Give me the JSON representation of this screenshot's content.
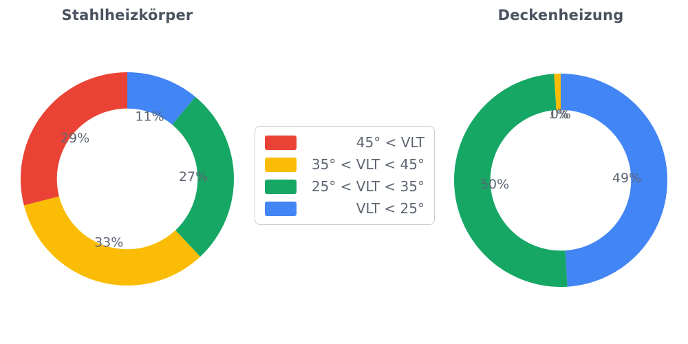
{
  "chart_data": [
    {
      "type": "pie",
      "subtype": "donut",
      "title": "Stahlheizkörper",
      "categories": [
        "45° < VLT",
        "35° < VLT < 45°",
        "25° < VLT < 35°",
        "VLT < 25°"
      ],
      "values": [
        29,
        33,
        27,
        11
      ],
      "value_labels": [
        "29%",
        "33%",
        "27%",
        "11%"
      ],
      "colors": [
        "#EA4335",
        "#FBBC05",
        "#16A765",
        "#4285F4"
      ],
      "start_angle": 90,
      "direction": "counterclockwise",
      "hole_ratio": 0.66,
      "label_distance": 0.62,
      "unit": "%"
    },
    {
      "type": "pie",
      "subtype": "donut",
      "title": "Deckenheizung",
      "categories": [
        "45° < VLT",
        "35° < VLT < 45°",
        "25° < VLT < 35°",
        "VLT < 25°"
      ],
      "values": [
        0,
        1,
        50,
        49
      ],
      "value_labels": [
        "0%",
        "1%",
        "50%",
        "49%"
      ],
      "colors": [
        "#EA4335",
        "#FBBC05",
        "#16A765",
        "#4285F4"
      ],
      "start_angle": 90,
      "direction": "counterclockwise",
      "hole_ratio": 0.66,
      "label_distance": 0.62,
      "unit": "%"
    }
  ],
  "legend": {
    "position": "center",
    "items": [
      {
        "label": "45° < VLT",
        "color": "#EA4335"
      },
      {
        "label": "35° < VLT < 45°",
        "color": "#FBBC05"
      },
      {
        "label": "25° < VLT < 35°",
        "color": "#16A765"
      },
      {
        "label": "VLT < 25°",
        "color": "#4285F4"
      }
    ]
  }
}
